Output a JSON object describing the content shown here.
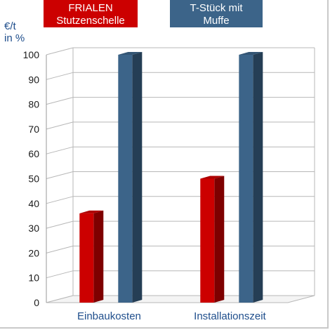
{
  "chart_data": {
    "type": "bar",
    "categories": [
      "Einbaukosten",
      "Installationszeit"
    ],
    "series": [
      {
        "name": "FRIALEN\nStutzenschelle",
        "values": [
          36,
          50
        ],
        "color": "#cc0000"
      },
      {
        "name": "T-Stück mit\nMuffe",
        "values": [
          100,
          100
        ],
        "color": "#3c6489"
      }
    ],
    "ylabel": "€/t\nin %",
    "ylim": [
      0,
      100
    ],
    "yticks": [
      0,
      10,
      20,
      30,
      40,
      50,
      60,
      70,
      80,
      90,
      100
    ],
    "grid": true,
    "legend_position": "top",
    "style": "3d"
  }
}
